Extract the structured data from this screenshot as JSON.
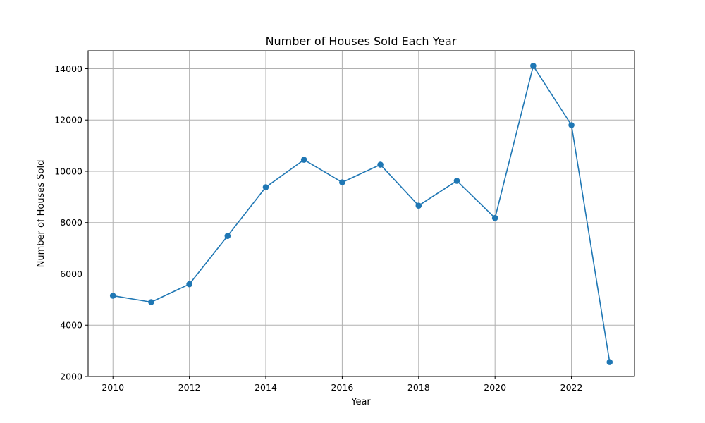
{
  "chart_data": {
    "type": "line",
    "title": "Number of Houses Sold Each Year",
    "xlabel": "Year",
    "ylabel": "Number of Houses Sold",
    "x": [
      2010,
      2011,
      2012,
      2013,
      2014,
      2015,
      2016,
      2017,
      2018,
      2019,
      2020,
      2021,
      2022,
      2023
    ],
    "series": [
      {
        "values": [
          5150,
          4900,
          5600,
          7480,
          9380,
          10450,
          9570,
          10260,
          8660,
          9630,
          8180,
          14110,
          11800,
          2560
        ],
        "color": "#1f77b4",
        "marker": "circle"
      }
    ],
    "xlim": [
      2009.35,
      2023.65
    ],
    "ylim": [
      2000,
      14700
    ],
    "xticks": [
      2010,
      2012,
      2014,
      2016,
      2018,
      2020,
      2022
    ],
    "yticks": [
      2000,
      4000,
      6000,
      8000,
      10000,
      12000,
      14000
    ],
    "xtick_labels": [
      "2010",
      "2012",
      "2014",
      "2016",
      "2018",
      "2020",
      "2022"
    ],
    "ytick_labels": [
      "2000",
      "4000",
      "6000",
      "8000",
      "10000",
      "12000",
      "14000"
    ],
    "grid": true,
    "grid_color": "#b0b0b0"
  }
}
